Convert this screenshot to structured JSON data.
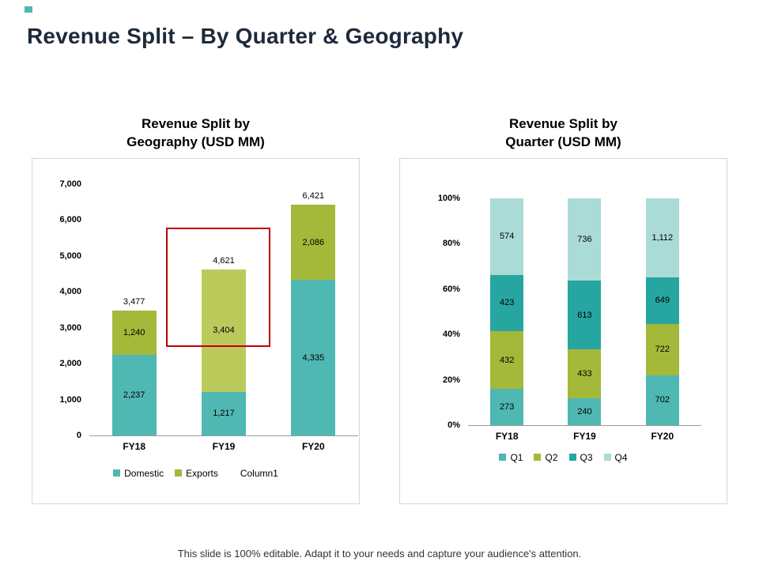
{
  "colors": {
    "teal": "#4FB8B2",
    "olive": "#A4B83A",
    "olive_light": "#BCCA5C",
    "dark_teal": "#27A5A1",
    "pale_teal": "#ABDBD7",
    "highlight_red": "#C00000",
    "title_text": "#1E2A3A"
  },
  "header": {
    "title": "Revenue Split – By Quarter & Geography"
  },
  "footer": {
    "text": "This slide is 100% editable. Adapt it to your needs and capture your audience's attention."
  },
  "chart_data": [
    {
      "type": "bar",
      "stacked": true,
      "percent": false,
      "title": "Revenue Split by Geography (USD MM)",
      "title_lines": [
        "Revenue Split by",
        "Geography (USD MM)"
      ],
      "categories": [
        "FY18",
        "FY19",
        "FY20"
      ],
      "series": [
        {
          "name": "Domestic",
          "color": "#4FB8B2",
          "values": [
            2237,
            1217,
            4335
          ]
        },
        {
          "name": "Exports",
          "color": "#A4B83A",
          "colors": [
            "#A4B83A",
            "#BCCA5C",
            "#A4B83A"
          ],
          "values": [
            1240,
            3404,
            2086
          ]
        },
        {
          "name": "Column1",
          "color": "#FFFFFF",
          "values": [
            0,
            0,
            0
          ]
        }
      ],
      "totals": [
        3477,
        4621,
        6421
      ],
      "total_labels": [
        "3,477",
        "4,621",
        "6,421"
      ],
      "xlabel": "",
      "ylabel": "",
      "ylim": [
        0,
        7000
      ],
      "yticks": [
        "7,000",
        "6,000",
        "5,000",
        "4,000",
        "3,000",
        "2,000",
        "1,000",
        "0"
      ],
      "grid": false,
      "legend_position": "bottom",
      "highlight": {
        "target": "FY19",
        "color": "#C00000"
      }
    },
    {
      "type": "bar",
      "stacked": true,
      "percent": true,
      "title": "Revenue Split by Quarter (USD MM)",
      "title_lines": [
        "Revenue Split by",
        "Quarter (USD MM)"
      ],
      "categories": [
        "FY18",
        "FY19",
        "FY20"
      ],
      "series": [
        {
          "name": "Q1",
          "color": "#4FB8B2",
          "values": [
            273,
            240,
            702
          ]
        },
        {
          "name": "Q2",
          "color": "#A4B83A",
          "values": [
            432,
            433,
            722
          ]
        },
        {
          "name": "Q3",
          "color": "#27A5A1",
          "values": [
            423,
            613,
            649
          ]
        },
        {
          "name": "Q4",
          "color": "#ABDBD7",
          "values": [
            574,
            736,
            1112
          ]
        }
      ],
      "xlabel": "",
      "ylabel": "",
      "ylim": [
        0,
        100
      ],
      "yticks": [
        "100%",
        "80%",
        "60%",
        "40%",
        "20%",
        "0%"
      ],
      "grid": false,
      "legend_position": "bottom"
    }
  ]
}
